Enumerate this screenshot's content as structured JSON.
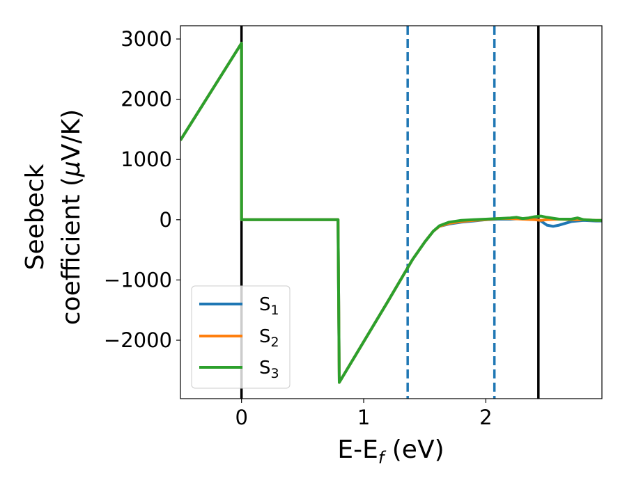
{
  "chart_data": {
    "type": "line",
    "xlabel": {
      "main": "E-E",
      "sub": "f",
      "tail": " (eV)"
    },
    "ylabel": {
      "line1": "Seebeck",
      "line2_pre": "coefficient  (",
      "mu": "μ",
      "line2_post": "V/K)"
    },
    "xlim": [
      -0.5,
      2.95
    ],
    "ylim": [
      -2970,
      3220
    ],
    "xticks": [
      {
        "value": 0,
        "label": "0"
      },
      {
        "value": 1,
        "label": "1"
      },
      {
        "value": 2,
        "label": "2"
      }
    ],
    "yticks": [
      {
        "value": 3000,
        "label": "3000"
      },
      {
        "value": 2000,
        "label": "2000"
      },
      {
        "value": 1000,
        "label": "1000"
      },
      {
        "value": 0,
        "label": "0"
      },
      {
        "value": -1000,
        "label": "−1000"
      },
      {
        "value": -2000,
        "label": "−2000"
      }
    ],
    "grid": false,
    "legend_position": "lower-left",
    "vlines": [
      {
        "x": 0.0,
        "style": "solid",
        "color": "#000000"
      },
      {
        "x": 2.43,
        "style": "solid",
        "color": "#000000"
      },
      {
        "x": 1.36,
        "style": "dashed",
        "color": "#1f77b4"
      },
      {
        "x": 2.07,
        "style": "dashed",
        "color": "#1f77b4"
      }
    ],
    "series": [
      {
        "name": "S",
        "sub": "1",
        "color": "#1f77b4",
        "x": [
          -0.5,
          0.0,
          0.0,
          0.79,
          0.8,
          1.2,
          1.4,
          1.5,
          1.57,
          1.62,
          1.7,
          1.8,
          1.9,
          2.0,
          2.1,
          2.2,
          2.3,
          2.4,
          2.45,
          2.5,
          2.55,
          2.6,
          2.7,
          2.8,
          2.9,
          2.95
        ],
        "y": [
          1320,
          2930,
          0,
          0,
          -2700,
          -1350,
          -660,
          -370,
          -190,
          -110,
          -70,
          -40,
          -20,
          0,
          10,
          10,
          20,
          20,
          -20,
          -90,
          -110,
          -90,
          -30,
          -10,
          -20,
          -20
        ]
      },
      {
        "name": "S",
        "sub": "2",
        "color": "#ff7f0e",
        "x": [
          -0.5,
          0.0,
          0.0,
          0.79,
          0.8,
          1.2,
          1.4,
          1.5,
          1.57,
          1.62,
          1.7,
          1.8,
          1.9,
          2.0,
          2.1,
          2.2,
          2.3,
          2.4,
          2.45,
          2.5,
          2.6,
          2.7,
          2.8,
          2.9,
          2.95
        ],
        "y": [
          1320,
          2930,
          0,
          0,
          -2700,
          -1350,
          -660,
          -370,
          -190,
          -110,
          -60,
          -30,
          -10,
          0,
          20,
          20,
          10,
          0,
          -10,
          0,
          10,
          0,
          0,
          -10,
          -10
        ]
      },
      {
        "name": "S",
        "sub": "3",
        "color": "#2ca02c",
        "x": [
          -0.5,
          0.0,
          0.0,
          0.79,
          0.8,
          1.2,
          1.4,
          1.5,
          1.57,
          1.62,
          1.7,
          1.8,
          1.9,
          2.0,
          2.1,
          2.2,
          2.25,
          2.3,
          2.35,
          2.4,
          2.45,
          2.5,
          2.6,
          2.7,
          2.75,
          2.8,
          2.9,
          2.95
        ],
        "y": [
          1320,
          2930,
          0,
          0,
          -2700,
          -1350,
          -660,
          -370,
          -190,
          -100,
          -40,
          -10,
          0,
          10,
          20,
          30,
          40,
          20,
          30,
          50,
          60,
          40,
          10,
          10,
          30,
          0,
          -10,
          -10
        ]
      }
    ]
  }
}
